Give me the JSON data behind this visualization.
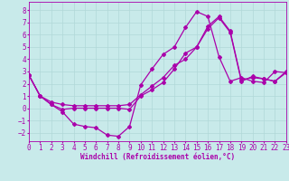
{
  "background_color": "#c8eaea",
  "grid_color": "#b0d8d8",
  "line_color": "#aa00aa",
  "marker": "D",
  "markersize": 2,
  "linewidth": 0.9,
  "xlim": [
    0,
    23
  ],
  "ylim": [
    -2.7,
    8.7
  ],
  "xlabel": "Windchill (Refroidissement éolien,°C)",
  "xlabel_fontsize": 5.5,
  "tick_fontsize": 5.5,
  "xticks": [
    0,
    1,
    2,
    3,
    4,
    5,
    6,
    7,
    8,
    9,
    10,
    11,
    12,
    13,
    14,
    15,
    16,
    17,
    18,
    19,
    20,
    21,
    22,
    23
  ],
  "yticks": [
    -2,
    -1,
    0,
    1,
    2,
    3,
    4,
    5,
    6,
    7,
    8
  ],
  "line1_x": [
    0,
    1,
    2,
    3,
    4,
    5,
    6,
    7,
    8,
    9,
    10,
    11,
    12,
    13,
    14,
    15,
    16,
    17,
    18,
    19,
    20,
    21,
    22,
    23
  ],
  "line1_y": [
    2.7,
    1.0,
    0.3,
    -0.3,
    -1.3,
    -1.5,
    -1.6,
    -2.2,
    -2.3,
    -1.5,
    1.9,
    3.2,
    4.4,
    5.0,
    6.6,
    7.9,
    7.5,
    4.2,
    2.2,
    2.5,
    2.2,
    2.1,
    3.0,
    2.9
  ],
  "line2_x": [
    0,
    1,
    2,
    3,
    4,
    5,
    6,
    7,
    8,
    9,
    10,
    11,
    12,
    13,
    14,
    15,
    16,
    17,
    18,
    19,
    20,
    21,
    22,
    23
  ],
  "line2_y": [
    2.7,
    1.0,
    0.3,
    -0.1,
    0.0,
    0.0,
    0.0,
    0.0,
    0.0,
    -0.1,
    1.0,
    1.5,
    2.1,
    3.2,
    4.5,
    5.0,
    6.7,
    7.5,
    6.3,
    2.3,
    2.5,
    2.4,
    2.2,
    3.0
  ],
  "line3_x": [
    0,
    1,
    2,
    3,
    4,
    5,
    6,
    7,
    8,
    9,
    10,
    11,
    12,
    13,
    14,
    15,
    16,
    17,
    18,
    19,
    20,
    21,
    22,
    23
  ],
  "line3_y": [
    2.7,
    1.0,
    0.5,
    0.3,
    0.2,
    0.2,
    0.2,
    0.2,
    0.2,
    0.3,
    1.1,
    1.8,
    2.5,
    3.5,
    4.0,
    5.0,
    6.5,
    7.4,
    6.2,
    2.2,
    2.6,
    2.4,
    2.2,
    2.9
  ]
}
